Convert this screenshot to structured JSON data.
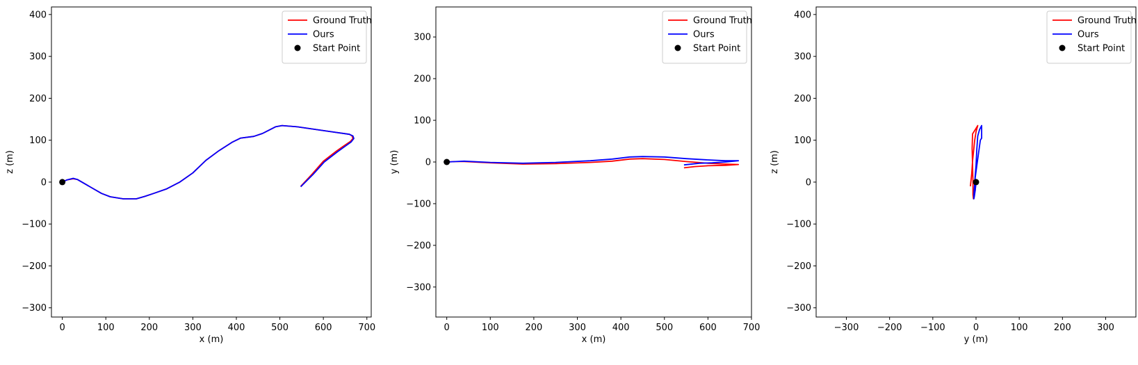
{
  "chart_data": [
    {
      "type": "line",
      "xlabel": "x (m)",
      "ylabel": "z (m)",
      "xlim": [
        -25,
        710
      ],
      "ylim": [
        -322,
        418
      ],
      "xticks": [
        0,
        100,
        200,
        300,
        400,
        500,
        600,
        700
      ],
      "yticks": [
        -300,
        -200,
        -100,
        0,
        100,
        200,
        300,
        400
      ],
      "xtick_labels": [
        "0",
        "100",
        "200",
        "300",
        "400",
        "500",
        "600",
        "700"
      ],
      "ytick_labels": [
        "−300",
        "−200",
        "−100",
        "0",
        "100",
        "200",
        "300",
        "400"
      ],
      "legend": {
        "placement": "top-right",
        "entries": [
          "Ground Truth",
          "Ours",
          "Start Point"
        ]
      },
      "series": [
        {
          "name": "Ground Truth",
          "color": "#ff0000",
          "points": [
            [
              0,
              0
            ],
            [
              10,
              5
            ],
            [
              25,
              8
            ],
            [
              35,
              6
            ],
            [
              50,
              -3
            ],
            [
              70,
              -15
            ],
            [
              90,
              -27
            ],
            [
              110,
              -35
            ],
            [
              140,
              -40
            ],
            [
              170,
              -40
            ],
            [
              190,
              -34
            ],
            [
              210,
              -27
            ],
            [
              240,
              -16
            ],
            [
              270,
              0
            ],
            [
              300,
              22
            ],
            [
              330,
              52
            ],
            [
              360,
              75
            ],
            [
              390,
              95
            ],
            [
              410,
              105
            ],
            [
              440,
              109
            ],
            [
              460,
              116
            ],
            [
              490,
              132
            ],
            [
              505,
              135
            ],
            [
              540,
              132
            ],
            [
              580,
              126
            ],
            [
              620,
              120
            ],
            [
              660,
              114
            ],
            [
              666,
              110
            ],
            [
              668,
              104
            ],
            [
              662,
              97
            ],
            [
              645,
              85
            ],
            [
              630,
              74
            ],
            [
              600,
              50
            ],
            [
              575,
              20
            ],
            [
              548,
              -10
            ]
          ]
        },
        {
          "name": "Ours",
          "color": "#0000ff",
          "points": [
            [
              0,
              0
            ],
            [
              10,
              5
            ],
            [
              25,
              9
            ],
            [
              35,
              6
            ],
            [
              50,
              -3
            ],
            [
              70,
              -15
            ],
            [
              90,
              -27
            ],
            [
              110,
              -35
            ],
            [
              140,
              -40
            ],
            [
              170,
              -40
            ],
            [
              190,
              -34
            ],
            [
              210,
              -27
            ],
            [
              240,
              -16
            ],
            [
              270,
              0
            ],
            [
              300,
              22
            ],
            [
              330,
              52
            ],
            [
              360,
              75
            ],
            [
              390,
              95
            ],
            [
              410,
              105
            ],
            [
              440,
              109
            ],
            [
              460,
              116
            ],
            [
              490,
              132
            ],
            [
              505,
              135
            ],
            [
              540,
              132
            ],
            [
              580,
              126
            ],
            [
              620,
              120
            ],
            [
              660,
              114
            ],
            [
              668,
              110
            ],
            [
              670,
              104
            ],
            [
              664,
              96
            ],
            [
              648,
              84
            ],
            [
              632,
              72
            ],
            [
              602,
              48
            ],
            [
              576,
              18
            ],
            [
              548,
              -11
            ]
          ]
        },
        {
          "name": "Start Point",
          "type": "scatter",
          "color": "#000000",
          "points": [
            [
              0,
              0
            ]
          ]
        }
      ]
    },
    {
      "type": "line",
      "xlabel": "x (m)",
      "ylabel": "y (m)",
      "xlim": [
        -25,
        700
      ],
      "ylim": [
        -372,
        372
      ],
      "xticks": [
        0,
        100,
        200,
        300,
        400,
        500,
        600,
        700
      ],
      "yticks": [
        -300,
        -200,
        -100,
        0,
        100,
        200,
        300
      ],
      "xtick_labels": [
        "0",
        "100",
        "200",
        "300",
        "400",
        "500",
        "600",
        "700"
      ],
      "ytick_labels": [
        "−300",
        "−200",
        "−100",
        "0",
        "100",
        "200",
        "300"
      ],
      "legend": {
        "placement": "top-right",
        "entries": [
          "Ground Truth",
          "Ours",
          "Start Point"
        ]
      },
      "series": [
        {
          "name": "Ground Truth",
          "color": "#ff0000",
          "points": [
            [
              0,
              0
            ],
            [
              20,
              1
            ],
            [
              40,
              1
            ],
            [
              100,
              -2
            ],
            [
              175,
              -5
            ],
            [
              250,
              -4
            ],
            [
              330,
              -1
            ],
            [
              380,
              2
            ],
            [
              420,
              7
            ],
            [
              450,
              8
            ],
            [
              500,
              6
            ],
            [
              550,
              1
            ],
            [
              600,
              -3
            ],
            [
              640,
              -5
            ],
            [
              670,
              -6
            ],
            [
              640,
              -8
            ],
            [
              600,
              -9
            ],
            [
              570,
              -11
            ],
            [
              545,
              -14
            ]
          ]
        },
        {
          "name": "Ours",
          "color": "#0000ff",
          "points": [
            [
              0,
              0
            ],
            [
              20,
              1
            ],
            [
              40,
              2
            ],
            [
              100,
              -1
            ],
            [
              175,
              -3
            ],
            [
              250,
              -1
            ],
            [
              330,
              3
            ],
            [
              380,
              7
            ],
            [
              420,
              12
            ],
            [
              450,
              13
            ],
            [
              500,
              12
            ],
            [
              550,
              8
            ],
            [
              600,
              5
            ],
            [
              640,
              3
            ],
            [
              670,
              3
            ],
            [
              640,
              0
            ],
            [
              610,
              -2
            ],
            [
              580,
              -3
            ],
            [
              545,
              -7
            ]
          ]
        },
        {
          "name": "Start Point",
          "type": "scatter",
          "color": "#000000",
          "points": [
            [
              0,
              0
            ]
          ]
        }
      ]
    },
    {
      "type": "line",
      "xlabel": "y (m)",
      "ylabel": "z (m)",
      "xlim": [
        -370,
        370
      ],
      "ylim": [
        -322,
        418
      ],
      "xticks": [
        -300,
        -200,
        -100,
        0,
        100,
        200,
        300
      ],
      "yticks": [
        -300,
        -200,
        -100,
        0,
        100,
        200,
        300,
        400
      ],
      "xtick_labels": [
        "−300",
        "−200",
        "−100",
        "0",
        "100",
        "200",
        "300"
      ],
      "ytick_labels": [
        "−300",
        "−200",
        "−100",
        "0",
        "100",
        "200",
        "300",
        "400"
      ],
      "legend": {
        "placement": "top-right",
        "entries": [
          "Ground Truth",
          "Ours",
          "Start Point"
        ]
      },
      "series": [
        {
          "name": "Ground Truth",
          "color": "#ff0000",
          "points": [
            [
              0,
              0
            ],
            [
              -2,
              -20
            ],
            [
              -5,
              -35
            ],
            [
              -6,
              -40
            ],
            [
              -7,
              -30
            ],
            [
              -7,
              0
            ],
            [
              -8,
              40
            ],
            [
              -9,
              80
            ],
            [
              -8,
              115
            ],
            [
              -2,
              125
            ],
            [
              4,
              135
            ],
            [
              0,
              120
            ],
            [
              -3,
              100
            ],
            [
              -8,
              50
            ],
            [
              -10,
              20
            ],
            [
              -13,
              -10
            ]
          ]
        },
        {
          "name": "Ours",
          "color": "#0000ff",
          "points": [
            [
              0,
              0
            ],
            [
              -2,
              -20
            ],
            [
              -4,
              -35
            ],
            [
              -5,
              -40
            ],
            [
              -5,
              -30
            ],
            [
              -3,
              0
            ],
            [
              0,
              40
            ],
            [
              2,
              80
            ],
            [
              4,
              110
            ],
            [
              8,
              125
            ],
            [
              13,
              135
            ],
            [
              13,
              105
            ],
            [
              10,
              100
            ],
            [
              6,
              70
            ],
            [
              2,
              40
            ],
            [
              -2,
              10
            ],
            [
              -3,
              -5
            ]
          ]
        },
        {
          "name": "Start Point",
          "type": "scatter",
          "color": "#000000",
          "points": [
            [
              0,
              0
            ]
          ]
        }
      ]
    }
  ]
}
